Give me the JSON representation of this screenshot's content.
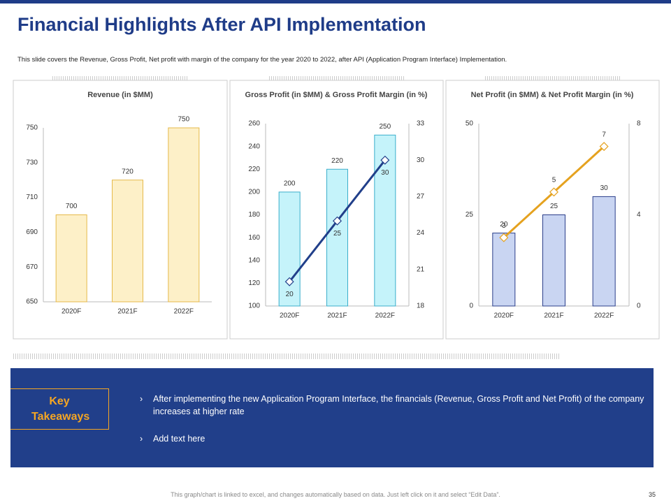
{
  "title": "Financial Highlights After API Implementation",
  "subtitle": "This slide covers the Revenue, Gross Profit, Net profit with margin of the company for the year 2020 to 2022, after API (Application Program Interface) Implementation.",
  "chart_data": [
    {
      "type": "bar",
      "title": "Revenue (in $MM)",
      "categories": [
        "2020F",
        "2021F",
        "2022F"
      ],
      "series": [
        {
          "color": "#fdf0c8",
          "values": [
            700,
            720,
            750
          ]
        }
      ],
      "ylim": [
        650,
        750
      ],
      "yticks": [
        650,
        670,
        690,
        710,
        730,
        750
      ]
    },
    {
      "type": "bar-line",
      "title": "Gross Profit (in $MM) & Gross Profit Margin (in %)",
      "categories": [
        "2020F",
        "2021F",
        "2022F"
      ],
      "series": [
        {
          "color": "#c5f3fa",
          "values": [
            200,
            220,
            250
          ]
        },
        {
          "color": "#213f8a",
          "values": [
            20,
            25,
            30
          ],
          "axis": "y2"
        }
      ],
      "ylim": [
        100,
        260
      ],
      "yticks": [
        100,
        120,
        140,
        160,
        180,
        200,
        220,
        240,
        260
      ],
      "y2lim": [
        18,
        33
      ],
      "y2ticks": [
        18,
        21,
        24,
        27,
        30,
        33
      ]
    },
    {
      "type": "bar-line",
      "title": "Net Profit (in $MM) & Net Profit Margin (in %)",
      "categories": [
        "2020F",
        "2021F",
        "2022F"
      ],
      "series": [
        {
          "color": "#c9d5f2",
          "values": [
            20,
            25,
            30
          ]
        },
        {
          "color": "#e5a21f",
          "values": [
            3,
            5,
            7
          ],
          "axis": "y2"
        }
      ],
      "ylim": [
        0,
        50
      ],
      "yticks": [
        0,
        25,
        50
      ],
      "y2lim": [
        0,
        8
      ],
      "y2ticks": [
        0,
        4,
        8
      ]
    }
  ],
  "takeaways": {
    "heading": "Key Takeaways",
    "bullets": [
      "After implementing the new Application Program Interface, the financials (Revenue, Gross Profit and Net Profit) of the company increases at higher rate",
      "Add text here"
    ]
  },
  "footer": "This graph/chart is linked to excel, and changes automatically based on data. Just left click on it and select “Edit Data”.",
  "page_number": "35"
}
